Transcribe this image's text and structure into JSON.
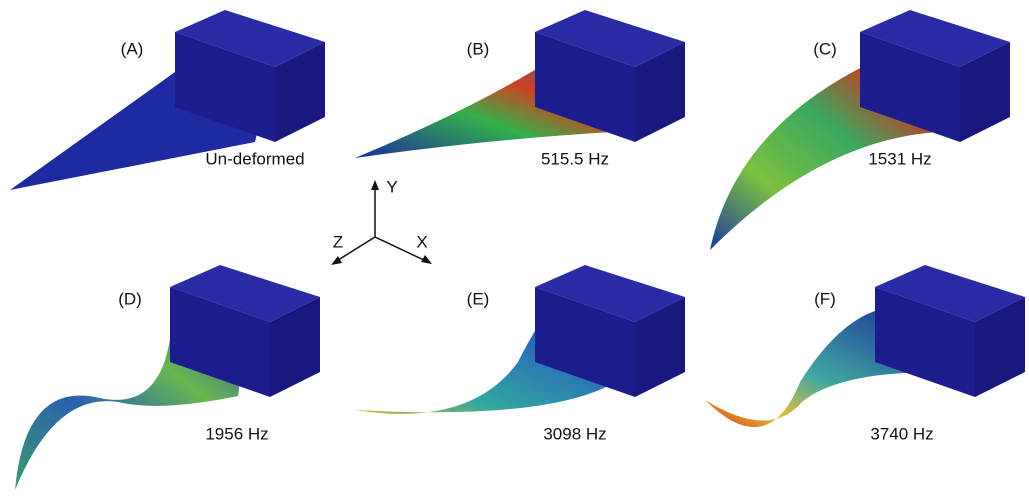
{
  "panels": [
    {
      "label": "(A)",
      "caption": "Un-deformed"
    },
    {
      "label": "(B)",
      "caption": "515.5 Hz"
    },
    {
      "label": "(C)",
      "caption": "1531 Hz"
    },
    {
      "label": "(D)",
      "caption": "1956 Hz"
    },
    {
      "label": "(E)",
      "caption": "3098 Hz"
    },
    {
      "label": "(F)",
      "caption": "3740 Hz"
    }
  ],
  "axes": {
    "x": "X",
    "y": "Y",
    "z": "Z"
  }
}
